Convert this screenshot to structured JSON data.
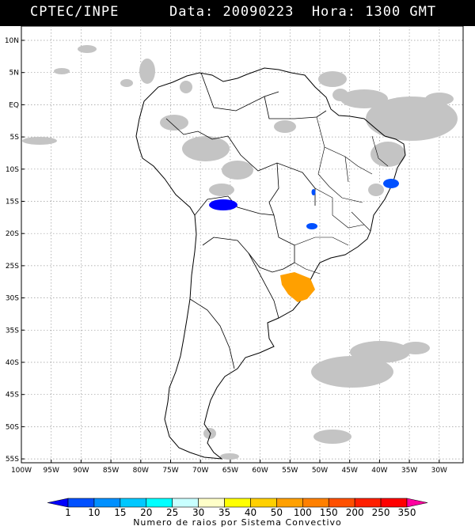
{
  "header": {
    "org": "CPTEC/INPE",
    "date_label": "Data:",
    "date_value": "20090223",
    "hour_label": "Hora:",
    "hour_value": "1300 GMT"
  },
  "map": {
    "lat_ticks": [
      "10N",
      "5N",
      "EQ",
      "5S",
      "10S",
      "15S",
      "20S",
      "25S",
      "30S",
      "35S",
      "40S",
      "45S",
      "50S",
      "55S"
    ],
    "lon_ticks": [
      "100W",
      "95W",
      "90W",
      "85W",
      "80W",
      "75W",
      "70W",
      "65W",
      "60W",
      "55W",
      "50W",
      "45W",
      "40W",
      "35W",
      "30W"
    ]
  },
  "legend": {
    "title": "Numero de raios por Sistema Convectivo",
    "labels": [
      "1",
      "10",
      "15",
      "20",
      "25",
      "30",
      "35",
      "40",
      "50",
      "100",
      "150",
      "200",
      "250",
      "350"
    ],
    "colors": [
      "#0000ff",
      "#0050ff",
      "#0090ff",
      "#00c8ff",
      "#00ffff",
      "#c8ffff",
      "#ffffc8",
      "#ffff00",
      "#ffd000",
      "#ffa000",
      "#ff8000",
      "#ff5000",
      "#ff2000",
      "#ff0000",
      "#ff00a0"
    ]
  },
  "systems": [
    {
      "name": "convective-system-bolivia",
      "lightning_color": "#0000ff"
    },
    {
      "name": "convective-system-goias",
      "lightning_color": "#0050ff"
    },
    {
      "name": "convective-system-parana",
      "lightning_color": "#0050ff"
    },
    {
      "name": "convective-system-bahia",
      "lightning_color": "#0050ff"
    },
    {
      "name": "convective-system-rio-grande-do-sul",
      "lightning_color": "#ffa000"
    }
  ]
}
